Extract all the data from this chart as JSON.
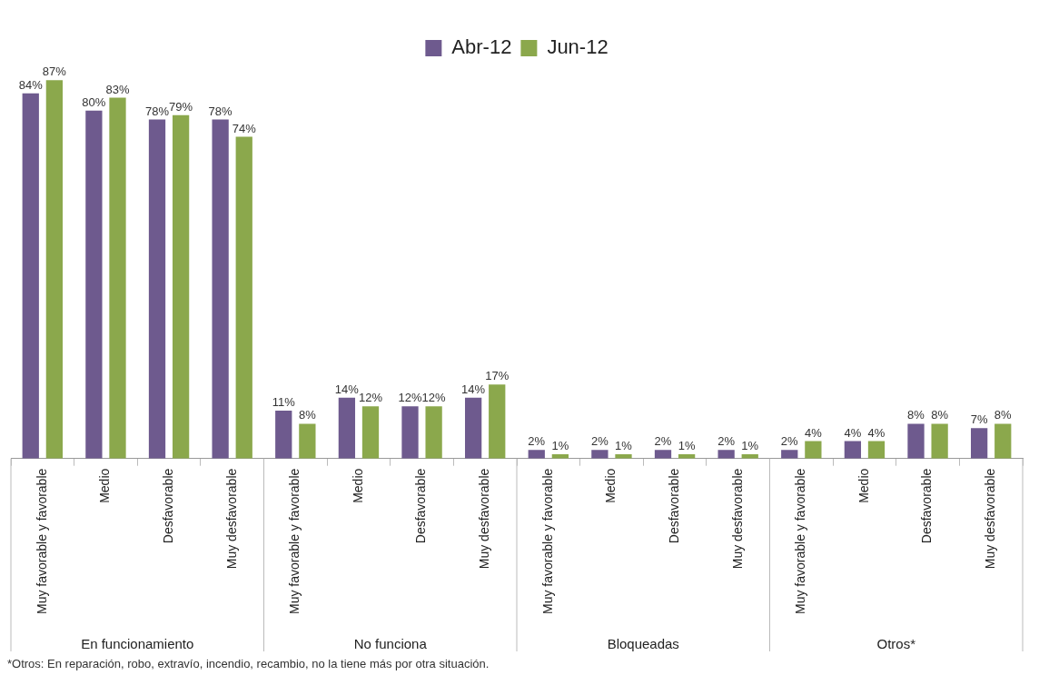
{
  "chart_data": {
    "type": "bar",
    "categories": [
      "Muy favorable y favorable",
      "Medio",
      "Desfavorable",
      "Muy desfavorable",
      "Muy favorable y favorable",
      "Medio",
      "Desfavorable",
      "Muy desfavorable",
      "Muy favorable y favorable",
      "Medio",
      "Desfavorable",
      "Muy desfavorable",
      "Muy favorable y favorable",
      "Medio",
      "Desfavorable",
      "Muy desfavorable"
    ],
    "series": [
      {
        "name": "Abr-12",
        "color": "#6e5a8e",
        "values": [
          84,
          80,
          78,
          78,
          11,
          14,
          12,
          14,
          2,
          2,
          2,
          2,
          2,
          4,
          8,
          7
        ],
        "value_labels": [
          "84%",
          "80%",
          "78%",
          "78%",
          "11%",
          "14%",
          "12%",
          "14%",
          "2%",
          "2%",
          "2%",
          "2%",
          "2%",
          "4%",
          "8%",
          "7%"
        ]
      },
      {
        "name": "Jun-12",
        "color": "#8ba84c",
        "values": [
          87,
          83,
          79,
          74,
          8,
          12,
          12,
          17,
          1,
          1,
          1,
          1,
          4,
          4,
          8,
          8
        ],
        "value_labels": [
          "87%",
          "83%",
          "79%",
          "74%",
          "8%",
          "12%",
          "12%",
          "17%",
          "1%",
          "1%",
          "1%",
          "1%",
          "4%",
          "4%",
          "8%",
          "8%"
        ]
      }
    ],
    "annotations": [
      "En funcionamiento",
      "No funciona",
      "Bloqueadas",
      "Otros*",
      "*Otros: En reparación, robo, extravío, incendio, recambio, no la tiene más por otra situación."
    ],
    "legend": "top",
    "grid": false
  }
}
